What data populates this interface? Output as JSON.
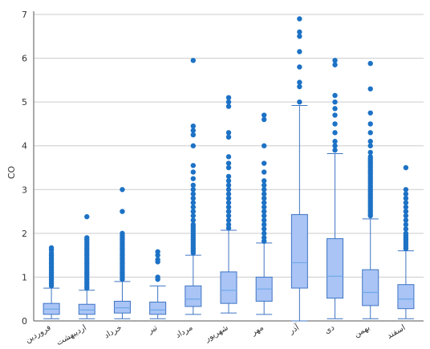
{
  "chart_data": {
    "type": "boxplot",
    "ylabel": "CO",
    "ylim": [
      0,
      7
    ],
    "yticks": [
      0,
      1,
      2,
      3,
      4,
      5,
      6,
      7
    ],
    "grid": true,
    "categories": [
      "فروردین",
      "اردیبهشت",
      "خرداد",
      "تیر",
      "مرداد",
      "شهریور",
      "مهر",
      "آذر",
      "دی",
      "بهمن",
      "اسفند"
    ],
    "boxes": [
      {
        "whisker_low": 0.05,
        "q1": 0.15,
        "median": 0.27,
        "q3": 0.4,
        "whisker_high": 0.75,
        "outliers": [
          0.8,
          0.85,
          0.9,
          0.95,
          1.0,
          1.05,
          1.1,
          1.15,
          1.2,
          1.25,
          1.3,
          1.35,
          1.4,
          1.45,
          1.5,
          1.55,
          1.62,
          1.67
        ]
      },
      {
        "whisker_low": 0.05,
        "q1": 0.15,
        "median": 0.25,
        "q3": 0.38,
        "whisker_high": 0.7,
        "outliers": [
          0.75,
          0.8,
          0.85,
          0.9,
          0.95,
          1.0,
          1.05,
          1.1,
          1.15,
          1.2,
          1.25,
          1.3,
          1.35,
          1.4,
          1.45,
          1.5,
          1.55,
          1.6,
          1.65,
          1.7,
          1.75,
          1.8,
          1.85,
          1.9,
          2.38
        ]
      },
      {
        "whisker_low": 0.05,
        "q1": 0.18,
        "median": 0.3,
        "q3": 0.45,
        "whisker_high": 0.9,
        "outliers": [
          0.95,
          1.0,
          1.05,
          1.1,
          1.15,
          1.2,
          1.25,
          1.3,
          1.35,
          1.4,
          1.45,
          1.5,
          1.55,
          1.6,
          1.65,
          1.7,
          1.75,
          1.8,
          1.85,
          1.9,
          1.95,
          2.0,
          2.5,
          3.0
        ]
      },
      {
        "whisker_low": 0.05,
        "q1": 0.15,
        "median": 0.25,
        "q3": 0.43,
        "whisker_high": 0.8,
        "outliers": [
          0.95,
          1.0,
          1.35,
          1.4,
          1.5,
          1.58
        ]
      },
      {
        "whisker_low": 0.15,
        "q1": 0.33,
        "median": 0.5,
        "q3": 0.8,
        "whisker_high": 1.5,
        "outliers": [
          1.55,
          1.6,
          1.65,
          1.7,
          1.75,
          1.8,
          1.85,
          1.9,
          1.95,
          2.0,
          2.05,
          2.1,
          2.15,
          2.2,
          2.3,
          2.4,
          2.5,
          2.6,
          2.7,
          2.8,
          2.9,
          3.0,
          3.1,
          3.25,
          3.4,
          3.55,
          4.0,
          4.25,
          4.35,
          4.45,
          5.95
        ]
      },
      {
        "whisker_low": 0.18,
        "q1": 0.4,
        "median": 0.7,
        "q3": 1.12,
        "whisker_high": 2.07,
        "outliers": [
          2.12,
          2.2,
          2.3,
          2.4,
          2.5,
          2.6,
          2.7,
          2.8,
          2.9,
          3.0,
          3.1,
          3.2,
          3.3,
          3.5,
          3.6,
          3.75,
          4.2,
          4.3,
          4.9,
          5.0,
          5.1
        ]
      },
      {
        "whisker_low": 0.15,
        "q1": 0.45,
        "median": 0.73,
        "q3": 1.0,
        "whisker_high": 1.78,
        "outliers": [
          1.82,
          1.9,
          2.0,
          2.1,
          2.2,
          2.3,
          2.4,
          2.5,
          2.6,
          2.7,
          2.8,
          2.9,
          3.0,
          3.1,
          3.2,
          3.4,
          3.6,
          4.0,
          4.6,
          4.7
        ]
      },
      {
        "whisker_low": 0.0,
        "q1": 0.75,
        "median": 1.33,
        "q3": 2.43,
        "whisker_high": 4.92,
        "outliers": [
          5.0,
          5.35,
          5.45,
          5.8,
          6.15,
          6.5,
          6.6,
          6.9
        ]
      },
      {
        "whisker_low": 0.05,
        "q1": 0.52,
        "median": 1.02,
        "q3": 1.88,
        "whisker_high": 3.82,
        "outliers": [
          3.9,
          4.0,
          4.1,
          4.3,
          4.5,
          4.7,
          4.85,
          5.0,
          5.15,
          5.85,
          5.95
        ]
      },
      {
        "whisker_low": 0.05,
        "q1": 0.35,
        "median": 0.65,
        "q3": 1.17,
        "whisker_high": 2.33,
        "outliers": [
          2.4,
          2.45,
          2.5,
          2.55,
          2.6,
          2.65,
          2.7,
          2.75,
          2.8,
          2.85,
          2.9,
          2.95,
          3.0,
          3.05,
          3.1,
          3.15,
          3.2,
          3.25,
          3.3,
          3.35,
          3.4,
          3.45,
          3.5,
          3.55,
          3.6,
          3.65,
          3.7,
          3.75,
          3.85,
          4.0,
          4.1,
          4.3,
          4.5,
          4.75,
          5.3,
          5.88
        ]
      },
      {
        "whisker_low": 0.05,
        "q1": 0.28,
        "median": 0.5,
        "q3": 0.83,
        "whisker_high": 1.6,
        "outliers": [
          1.65,
          1.7,
          1.75,
          1.8,
          1.85,
          1.9,
          1.95,
          2.0,
          2.1,
          2.2,
          2.3,
          2.4,
          2.5,
          2.6,
          2.7,
          2.8,
          2.9,
          3.0,
          3.5
        ]
      }
    ],
    "colors": {
      "box_fill": "#a9c4f5",
      "box_stroke": "#3f74c4",
      "median": "#6fa8e8",
      "whisker": "#3f74c4",
      "outlier": "#1d72c5",
      "grid": "#cccccc",
      "axis": "#555555"
    }
  }
}
